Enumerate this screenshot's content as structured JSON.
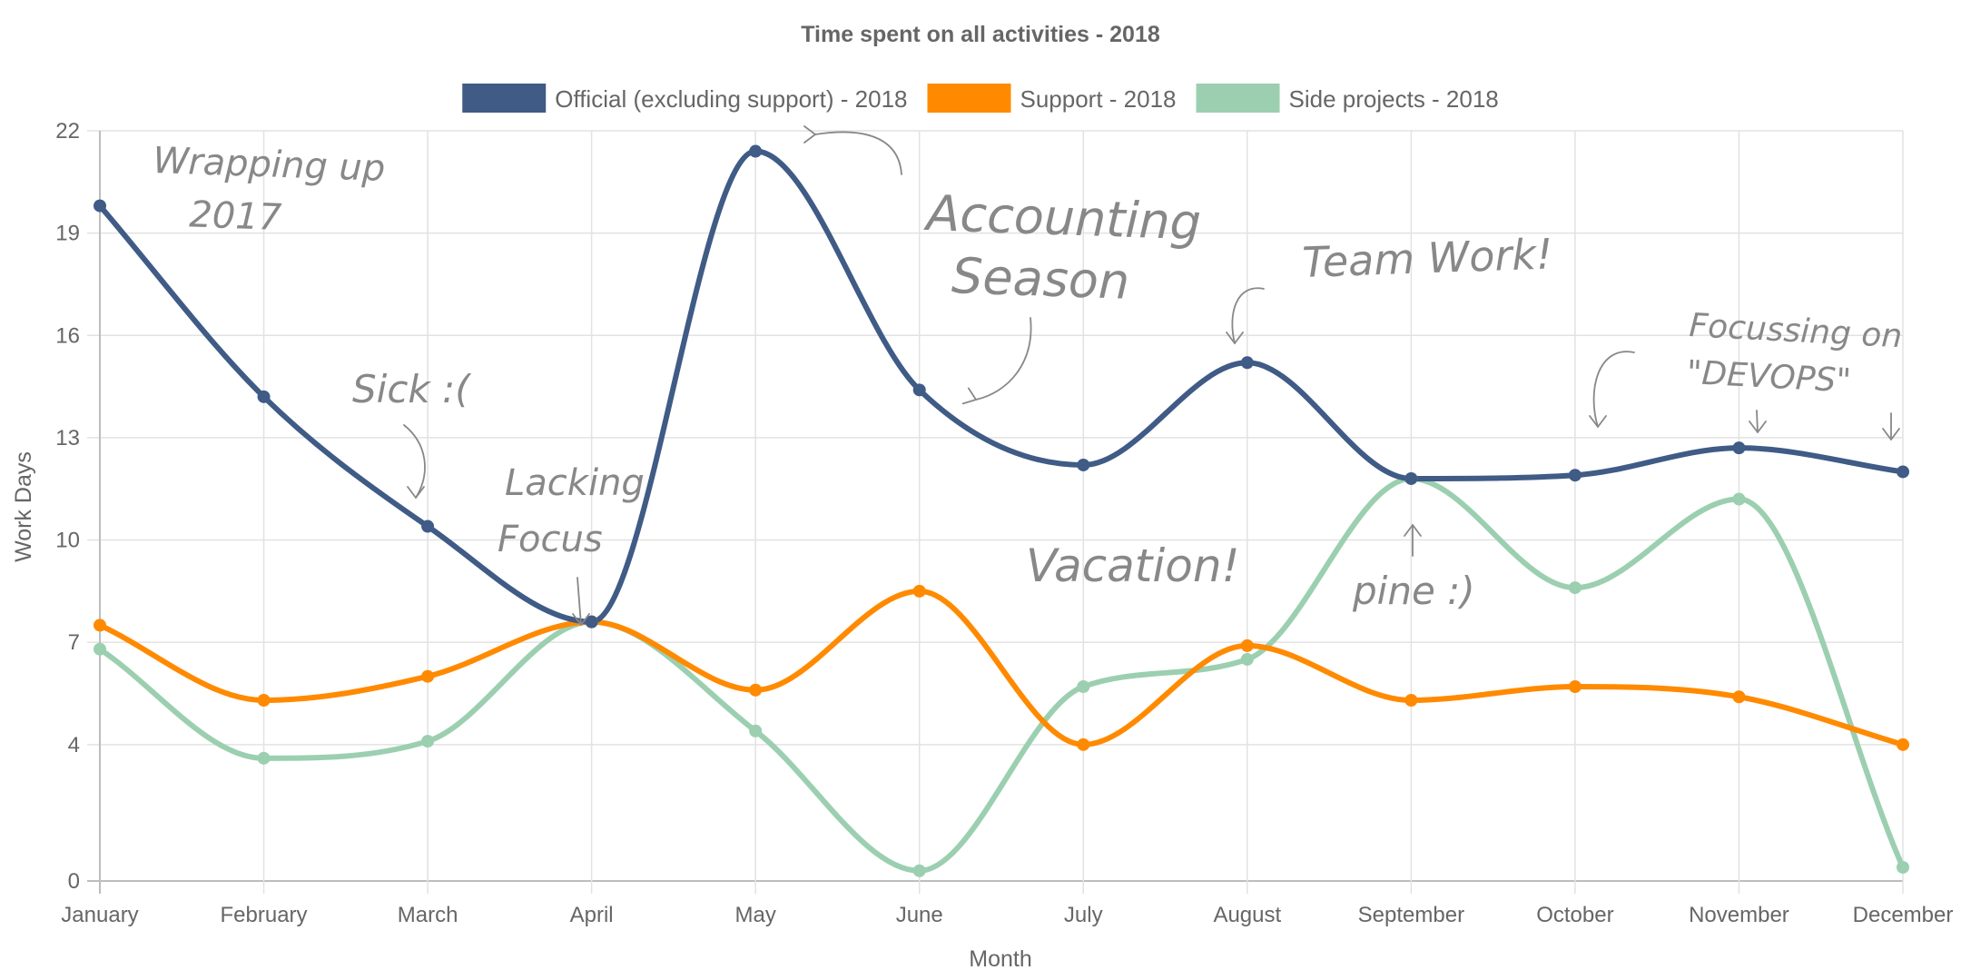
{
  "chart_data": {
    "type": "line",
    "title": "Time spent on all activities - 2018",
    "xlabel": "Month",
    "ylabel": "Work Days",
    "categories": [
      "January",
      "February",
      "March",
      "April",
      "May",
      "June",
      "July",
      "August",
      "September",
      "October",
      "November",
      "December"
    ],
    "yticks": [
      0,
      4,
      7,
      10,
      13,
      16,
      19,
      22
    ],
    "ylim": [
      0,
      22
    ],
    "grid": true,
    "legend_position": "top",
    "series": [
      {
        "name": "Official (excluding support) - 2018",
        "color": "#3f5b86",
        "values": [
          19.8,
          14.2,
          10.4,
          7.6,
          21.4,
          14.4,
          12.2,
          15.2,
          11.8,
          11.9,
          12.7,
          12.0
        ]
      },
      {
        "name": "Support - 2018",
        "color": "#ff8a00",
        "values": [
          7.5,
          5.3,
          6.0,
          7.6,
          5.6,
          8.5,
          4.0,
          6.9,
          5.3,
          5.7,
          5.4,
          4.0
        ]
      },
      {
        "name": "Side projects - 2018",
        "color": "#9bcfb0",
        "values": [
          6.8,
          3.6,
          4.1,
          7.6,
          4.4,
          0.3,
          5.7,
          6.5,
          11.8,
          8.6,
          11.2,
          0.4
        ]
      }
    ],
    "annotations": [
      {
        "lines": [
          "Wrapping up",
          "2017"
        ]
      },
      {
        "lines": [
          "Sick :("
        ]
      },
      {
        "lines": [
          "Lacking",
          "Focus"
        ]
      },
      {
        "lines": [
          "Accounting",
          "Season"
        ]
      },
      {
        "lines": [
          "Team Work!"
        ]
      },
      {
        "lines": [
          "Vacation!"
        ]
      },
      {
        "lines": [
          "pine :)"
        ]
      },
      {
        "lines": [
          "Focussing on",
          "\"DEVOPS\""
        ]
      }
    ]
  }
}
